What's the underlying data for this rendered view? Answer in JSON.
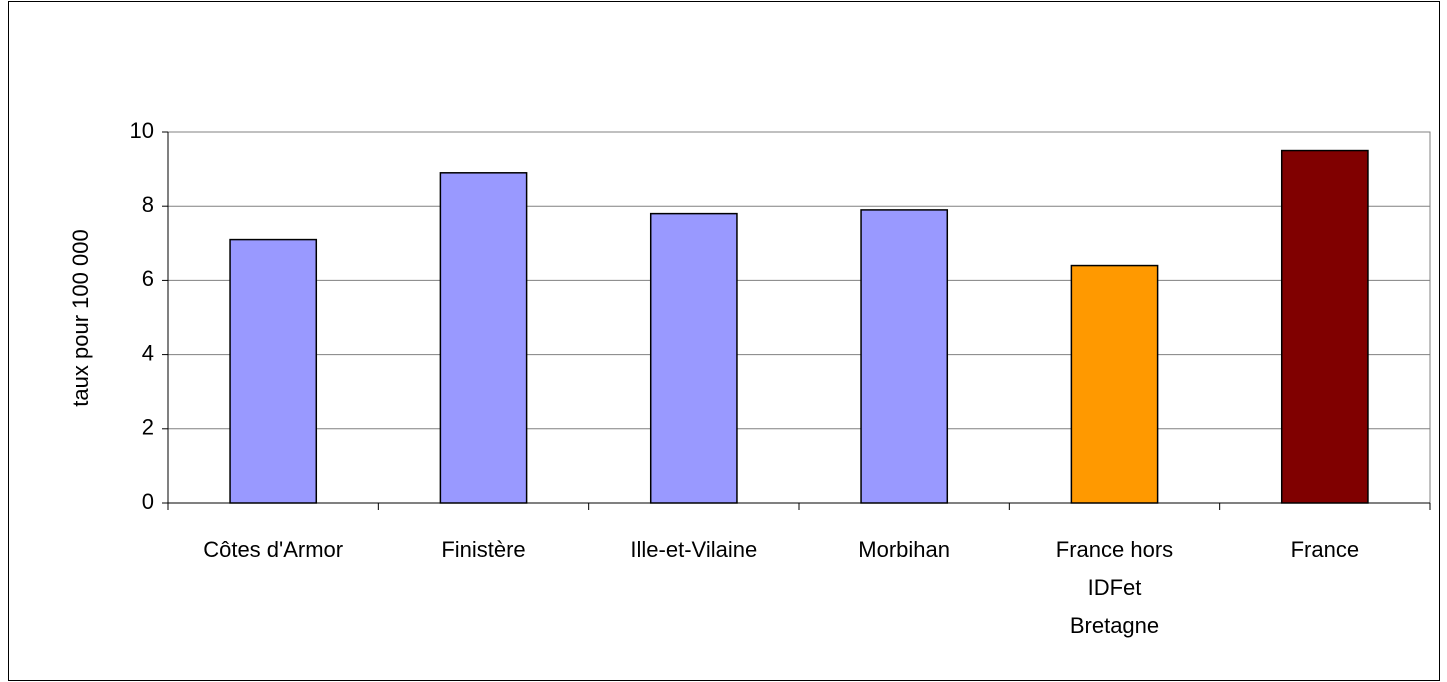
{
  "chart_data": {
    "type": "bar",
    "y_label": "taux pour 100 000",
    "categories": [
      "Côtes d'Armor",
      "Finistère",
      "Ille-et-Vilaine",
      "Morbihan",
      "France hors\nIDFet\nBretagne",
      "France"
    ],
    "values": [
      7.1,
      8.9,
      7.8,
      7.9,
      6.4,
      9.5
    ],
    "colors": [
      "#9999ff",
      "#9999ff",
      "#9999ff",
      "#9999ff",
      "#ff9900",
      "#800000"
    ],
    "ylim": [
      0,
      10
    ],
    "yticks": [
      0,
      2,
      4,
      6,
      8,
      10
    ],
    "grid": true
  }
}
